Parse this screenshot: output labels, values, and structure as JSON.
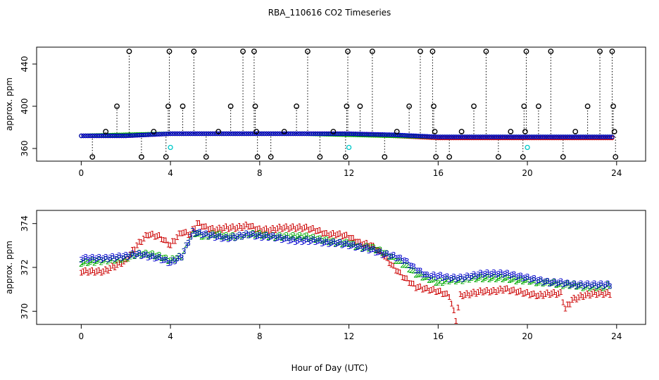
{
  "title": "RBA_110616  CO2 Timeseries",
  "xlabel": "Hour of Day (UTC)",
  "chart_data": [
    {
      "type": "scatter",
      "ylabel": "approx. ppm",
      "xlim": [
        -2,
        25.3
      ],
      "ylim": [
        348,
        456
      ],
      "xticks": [
        0,
        4,
        8,
        12,
        16,
        20,
        24
      ],
      "yticks": [
        360,
        400,
        440
      ],
      "grid": false,
      "base_series": [
        {
          "color": "#cc0000",
          "x": [
            0.0,
            2.0,
            4.0,
            6.0,
            8.0,
            10.0,
            12.0,
            14.0,
            16.0,
            18.0,
            20.0,
            22.0,
            23.8
          ],
          "y": [
            372,
            372,
            374,
            374,
            374,
            374,
            374,
            372,
            370,
            370,
            370,
            370,
            370
          ]
        },
        {
          "color": "#00aa00",
          "x": [
            0.0,
            2.0,
            4.0,
            6.0,
            8.0,
            10.0,
            12.0,
            14.0,
            16.0,
            18.0,
            20.0,
            22.0,
            23.8
          ],
          "y": [
            372,
            373,
            374,
            374,
            374,
            374,
            373,
            372,
            371,
            371,
            371,
            371,
            371
          ]
        },
        {
          "color": "#0000cc",
          "x": [
            0.0,
            2.0,
            4.0,
            6.0,
            8.0,
            10.0,
            12.0,
            14.0,
            16.0,
            18.0,
            20.0,
            22.0,
            23.8
          ],
          "y": [
            372,
            372,
            374,
            374,
            374,
            374,
            374,
            373,
            371,
            371,
            371,
            371,
            371
          ]
        }
      ],
      "spikes": [
        {
          "x": 0.5,
          "y": 352
        },
        {
          "x": 1.1,
          "y": 376
        },
        {
          "x": 1.6,
          "y": 400
        },
        {
          "x": 2.15,
          "y": 452
        },
        {
          "x": 2.7,
          "y": 352
        },
        {
          "x": 3.25,
          "y": 376
        },
        {
          "x": 3.8,
          "y": 352
        },
        {
          "x": 3.9,
          "y": 400
        },
        {
          "x": 3.95,
          "y": 452
        },
        {
          "x": 4.55,
          "y": 400
        },
        {
          "x": 5.05,
          "y": 452
        },
        {
          "x": 5.6,
          "y": 352
        },
        {
          "x": 6.15,
          "y": 376
        },
        {
          "x": 6.7,
          "y": 400
        },
        {
          "x": 7.25,
          "y": 452
        },
        {
          "x": 7.75,
          "y": 452
        },
        {
          "x": 7.8,
          "y": 400
        },
        {
          "x": 7.85,
          "y": 376
        },
        {
          "x": 7.9,
          "y": 352
        },
        {
          "x": 8.5,
          "y": 352
        },
        {
          "x": 9.1,
          "y": 376
        },
        {
          "x": 9.65,
          "y": 400
        },
        {
          "x": 10.15,
          "y": 452
        },
        {
          "x": 10.7,
          "y": 352
        },
        {
          "x": 11.3,
          "y": 376
        },
        {
          "x": 11.85,
          "y": 352
        },
        {
          "x": 11.9,
          "y": 400
        },
        {
          "x": 11.95,
          "y": 452
        },
        {
          "x": 12.5,
          "y": 400
        },
        {
          "x": 13.05,
          "y": 452
        },
        {
          "x": 13.6,
          "y": 352
        },
        {
          "x": 14.15,
          "y": 376
        },
        {
          "x": 14.7,
          "y": 400
        },
        {
          "x": 15.2,
          "y": 452
        },
        {
          "x": 15.75,
          "y": 452
        },
        {
          "x": 15.8,
          "y": 400
        },
        {
          "x": 15.85,
          "y": 376
        },
        {
          "x": 15.9,
          "y": 352
        },
        {
          "x": 16.5,
          "y": 352
        },
        {
          "x": 17.05,
          "y": 376
        },
        {
          "x": 17.6,
          "y": 400
        },
        {
          "x": 18.15,
          "y": 452
        },
        {
          "x": 18.7,
          "y": 352
        },
        {
          "x": 19.25,
          "y": 376
        },
        {
          "x": 19.8,
          "y": 352
        },
        {
          "x": 19.85,
          "y": 400
        },
        {
          "x": 19.9,
          "y": 376
        },
        {
          "x": 19.95,
          "y": 452
        },
        {
          "x": 20.5,
          "y": 400
        },
        {
          "x": 21.05,
          "y": 452
        },
        {
          "x": 21.6,
          "y": 352
        },
        {
          "x": 22.15,
          "y": 376
        },
        {
          "x": 22.7,
          "y": 400
        },
        {
          "x": 23.25,
          "y": 452
        },
        {
          "x": 23.8,
          "y": 452
        },
        {
          "x": 23.85,
          "y": 400
        },
        {
          "x": 23.9,
          "y": 376
        },
        {
          "x": 23.95,
          "y": 352
        }
      ],
      "cyan_points": [
        {
          "x": 4.0,
          "y": 361
        },
        {
          "x": 12.0,
          "y": 361
        },
        {
          "x": 20.0,
          "y": 361
        }
      ]
    },
    {
      "type": "scatter",
      "ylabel": "approx. ppm",
      "xlim": [
        -2,
        25.3
      ],
      "ylim": [
        369.4,
        374.6
      ],
      "xticks": [
        0,
        4,
        8,
        12,
        16,
        20,
        24
      ],
      "yticks": [
        370,
        372,
        374
      ],
      "grid": false,
      "series": [
        {
          "glyph": "1",
          "color": "#cc0000",
          "x": [
            0.0,
            1.0,
            2.0,
            2.5,
            3.0,
            3.5,
            4.0,
            4.5,
            4.9,
            5.2,
            5.6,
            6.0,
            6.5,
            7.0,
            7.5,
            8.0,
            8.5,
            9.0,
            9.5,
            10.0,
            10.5,
            11.0,
            11.5,
            12.0,
            12.5,
            13.0,
            13.5,
            14.0,
            14.5,
            15.0,
            15.5,
            16.0,
            16.5,
            16.8,
            17.0,
            17.5,
            18.0,
            18.5,
            19.0,
            19.5,
            20.0,
            20.5,
            21.0,
            21.5,
            21.7,
            22.0,
            22.5,
            23.0,
            23.5,
            23.7
          ],
          "y": [
            371.8,
            371.8,
            372.3,
            373.0,
            373.5,
            373.4,
            373.0,
            373.6,
            373.5,
            374.0,
            373.8,
            373.7,
            373.8,
            373.8,
            373.9,
            373.7,
            373.7,
            373.8,
            373.8,
            373.8,
            373.7,
            373.5,
            373.5,
            373.4,
            373.1,
            373.0,
            372.6,
            372.0,
            371.5,
            371.1,
            371.0,
            370.9,
            370.7,
            369.6,
            370.7,
            370.8,
            370.9,
            370.9,
            371.0,
            370.9,
            370.8,
            370.7,
            370.8,
            370.8,
            370.1,
            370.5,
            370.7,
            370.8,
            370.8,
            370.8
          ]
        },
        {
          "glyph": "2",
          "color": "#00aa00",
          "x": [
            0.0,
            1.0,
            2.0,
            2.5,
            3.0,
            3.5,
            4.0,
            4.5,
            5.0,
            5.5,
            6.0,
            6.5,
            7.0,
            7.5,
            8.0,
            8.5,
            9.0,
            9.5,
            10.0,
            10.5,
            11.0,
            11.5,
            12.0,
            12.5,
            13.0,
            13.5,
            14.0,
            14.5,
            15.0,
            15.5,
            16.0,
            16.5,
            17.0,
            17.5,
            18.0,
            18.5,
            19.0,
            19.5,
            20.0,
            20.5,
            21.0,
            21.5,
            22.0,
            22.5,
            23.0,
            23.5,
            23.7
          ],
          "y": [
            372.2,
            372.3,
            372.4,
            372.6,
            372.6,
            372.5,
            372.3,
            372.5,
            373.6,
            373.4,
            373.5,
            373.4,
            373.4,
            373.5,
            373.5,
            373.4,
            373.4,
            373.4,
            373.4,
            373.3,
            373.2,
            373.1,
            373.1,
            372.9,
            372.9,
            372.7,
            372.4,
            372.1,
            371.7,
            371.5,
            371.3,
            371.4,
            371.4,
            371.5,
            371.5,
            371.5,
            371.5,
            371.4,
            371.4,
            371.3,
            371.3,
            371.2,
            371.2,
            371.1,
            371.1,
            371.1,
            371.2
          ]
        },
        {
          "glyph": "3",
          "color": "#0000cc",
          "x": [
            0.0,
            1.0,
            2.0,
            2.5,
            3.0,
            3.5,
            4.0,
            4.5,
            5.0,
            5.5,
            6.0,
            6.5,
            7.0,
            7.5,
            8.0,
            8.5,
            9.0,
            9.5,
            10.0,
            10.5,
            11.0,
            11.5,
            12.0,
            12.5,
            13.0,
            13.5,
            14.0,
            14.5,
            15.0,
            15.5,
            16.0,
            16.5,
            17.0,
            17.5,
            18.0,
            18.5,
            19.0,
            19.5,
            20.0,
            20.5,
            21.0,
            21.5,
            22.0,
            22.5,
            23.0,
            23.5,
            23.7
          ],
          "y": [
            372.4,
            372.4,
            372.5,
            372.6,
            372.5,
            372.4,
            372.2,
            372.5,
            373.6,
            373.5,
            373.4,
            373.3,
            373.4,
            373.5,
            373.4,
            373.4,
            373.3,
            373.2,
            373.2,
            373.2,
            373.1,
            373.1,
            373.0,
            372.9,
            372.8,
            372.6,
            372.5,
            372.3,
            371.9,
            371.6,
            371.6,
            371.5,
            371.5,
            371.6,
            371.7,
            371.7,
            371.7,
            371.6,
            371.5,
            371.4,
            371.3,
            371.3,
            371.2,
            371.2,
            371.2,
            371.2,
            371.2
          ]
        }
      ]
    }
  ]
}
